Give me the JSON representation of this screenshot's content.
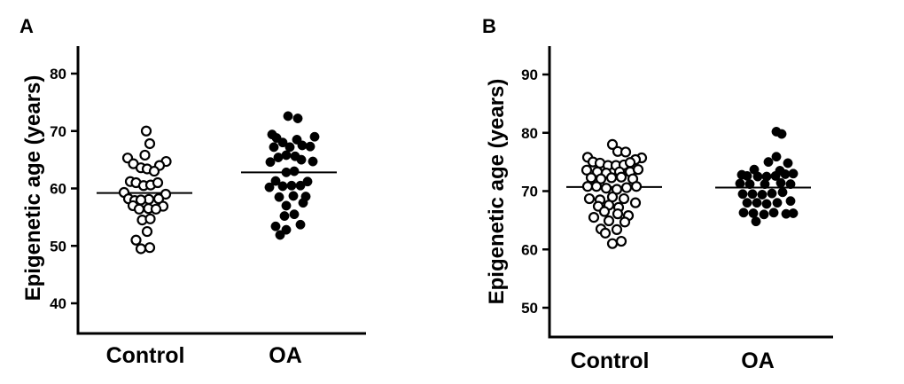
{
  "chart_data": [
    {
      "panel": "A",
      "type": "scatter",
      "ylabel": "Epigenetic age (years)",
      "categories": [
        "Control",
        "OA"
      ],
      "ylim": [
        35,
        85
      ],
      "yticks": [
        40,
        50,
        60,
        70,
        80
      ],
      "series": [
        {
          "name": "Control",
          "marker": "open-circle",
          "mean": 59.2,
          "points": [
            {
              "offset": 0.2,
              "y": 70.0
            },
            {
              "offset": 0.6,
              "y": 67.8
            },
            {
              "offset": 0.05,
              "y": 65.8
            },
            {
              "offset": -1.9,
              "y": 65.3
            },
            {
              "offset": 2.45,
              "y": 64.7
            },
            {
              "offset": -1.25,
              "y": 64.3
            },
            {
              "offset": 1.7,
              "y": 64.0
            },
            {
              "offset": -0.4,
              "y": 63.6
            },
            {
              "offset": 0.3,
              "y": 63.4
            },
            {
              "offset": 1.1,
              "y": 63.0
            },
            {
              "offset": -1.6,
              "y": 61.2
            },
            {
              "offset": -0.95,
              "y": 61.0
            },
            {
              "offset": -0.1,
              "y": 60.5
            },
            {
              "offset": 0.7,
              "y": 60.6
            },
            {
              "offset": 1.5,
              "y": 61.0
            },
            {
              "offset": -2.3,
              "y": 59.3
            },
            {
              "offset": 2.4,
              "y": 59.0
            },
            {
              "offset": -1.8,
              "y": 58.2
            },
            {
              "offset": -1.1,
              "y": 57.9
            },
            {
              "offset": 0.5,
              "y": 58.1
            },
            {
              "offset": 1.6,
              "y": 58.2
            },
            {
              "offset": -0.4,
              "y": 58.0
            },
            {
              "offset": -1.3,
              "y": 57.0
            },
            {
              "offset": 2.1,
              "y": 56.9
            },
            {
              "offset": -0.6,
              "y": 56.4
            },
            {
              "offset": 0.45,
              "y": 56.5
            },
            {
              "offset": 1.3,
              "y": 56.4
            },
            {
              "offset": -0.25,
              "y": 54.5
            },
            {
              "offset": 0.65,
              "y": 54.7
            },
            {
              "offset": 0.3,
              "y": 52.5
            },
            {
              "offset": -0.95,
              "y": 51.0
            },
            {
              "offset": -0.4,
              "y": 49.5
            },
            {
              "offset": 0.6,
              "y": 49.7
            }
          ]
        },
        {
          "name": "OA",
          "marker": "filled-circle",
          "mean": 62.8,
          "points": [
            {
              "offset": -0.1,
              "y": 72.6
            },
            {
              "offset": 1.0,
              "y": 72.2
            },
            {
              "offset": -1.9,
              "y": 69.4
            },
            {
              "offset": 2.9,
              "y": 69.0
            },
            {
              "offset": -1.4,
              "y": 68.8
            },
            {
              "offset": 0.9,
              "y": 68.5
            },
            {
              "offset": -0.7,
              "y": 68.0
            },
            {
              "offset": 0.1,
              "y": 67.2
            },
            {
              "offset": -1.7,
              "y": 67.2
            },
            {
              "offset": 1.5,
              "y": 67.5
            },
            {
              "offset": 2.4,
              "y": 67.3
            },
            {
              "offset": -0.3,
              "y": 65.8
            },
            {
              "offset": 0.7,
              "y": 65.6
            },
            {
              "offset": -1.2,
              "y": 65.4
            },
            {
              "offset": 1.4,
              "y": 65.0
            },
            {
              "offset": -2.1,
              "y": 64.6
            },
            {
              "offset": 2.7,
              "y": 64.7
            },
            {
              "offset": -0.3,
              "y": 62.8
            },
            {
              "offset": 0.6,
              "y": 63.0
            },
            {
              "offset": -1.5,
              "y": 61.3
            },
            {
              "offset": 2.1,
              "y": 61.2
            },
            {
              "offset": -2.2,
              "y": 60.2
            },
            {
              "offset": -0.7,
              "y": 60.4
            },
            {
              "offset": 0.3,
              "y": 60.5
            },
            {
              "offset": 1.3,
              "y": 60.5
            },
            {
              "offset": -1.1,
              "y": 58.5
            },
            {
              "offset": 0.5,
              "y": 58.7
            },
            {
              "offset": 1.9,
              "y": 58.6
            },
            {
              "offset": -0.3,
              "y": 57.0
            },
            {
              "offset": 1.6,
              "y": 57.5
            },
            {
              "offset": -0.5,
              "y": 55.2
            },
            {
              "offset": 0.6,
              "y": 55.5
            },
            {
              "offset": -1.5,
              "y": 53.4
            },
            {
              "offset": 1.3,
              "y": 53.7
            },
            {
              "offset": -0.3,
              "y": 52.8
            },
            {
              "offset": -1.0,
              "y": 51.9
            }
          ]
        }
      ]
    },
    {
      "panel": "B",
      "type": "scatter",
      "ylabel": "Epigenetic age (years)",
      "categories": [
        "Control",
        "OA"
      ],
      "ylim": [
        45,
        95
      ],
      "yticks": [
        50,
        60,
        70,
        80,
        90
      ],
      "series": [
        {
          "name": "Control",
          "marker": "open-circle",
          "mean": 70.7,
          "points": [
            {
              "offset": -0.2,
              "y": 78.0
            },
            {
              "offset": 0.4,
              "y": 76.8
            },
            {
              "offset": 1.3,
              "y": 76.7
            },
            {
              "offset": -3.0,
              "y": 75.8
            },
            {
              "offset": 3.1,
              "y": 75.7
            },
            {
              "offset": -2.4,
              "y": 75.0
            },
            {
              "offset": 2.4,
              "y": 75.4
            },
            {
              "offset": -1.6,
              "y": 74.8
            },
            {
              "offset": -0.7,
              "y": 74.4
            },
            {
              "offset": 0.2,
              "y": 74.4
            },
            {
              "offset": 1.1,
              "y": 74.5
            },
            {
              "offset": 1.8,
              "y": 74.9
            },
            {
              "offset": -3.1,
              "y": 73.6
            },
            {
              "offset": -1.9,
              "y": 73.3
            },
            {
              "offset": -0.9,
              "y": 73.1
            },
            {
              "offset": 0.6,
              "y": 73.3
            },
            {
              "offset": 1.8,
              "y": 73.3
            },
            {
              "offset": 2.7,
              "y": 73.7
            },
            {
              "offset": -2.6,
              "y": 72.3
            },
            {
              "offset": -1.5,
              "y": 72.1
            },
            {
              "offset": -0.3,
              "y": 72.3
            },
            {
              "offset": 0.8,
              "y": 72.4
            },
            {
              "offset": 2.1,
              "y": 72.1
            },
            {
              "offset": -3.0,
              "y": 70.8
            },
            {
              "offset": -2.0,
              "y": 70.8
            },
            {
              "offset": -0.9,
              "y": 70.5
            },
            {
              "offset": 0.3,
              "y": 70.3
            },
            {
              "offset": 1.4,
              "y": 70.6
            },
            {
              "offset": 2.5,
              "y": 70.8
            },
            {
              "offset": -2.8,
              "y": 68.7
            },
            {
              "offset": -1.6,
              "y": 68.5
            },
            {
              "offset": -0.2,
              "y": 69.0
            },
            {
              "offset": 1.1,
              "y": 68.7
            },
            {
              "offset": 2.4,
              "y": 68.0
            },
            {
              "offset": -1.8,
              "y": 67.4
            },
            {
              "offset": -0.6,
              "y": 67.6
            },
            {
              "offset": 0.5,
              "y": 67.2
            },
            {
              "offset": -1.1,
              "y": 66.5
            },
            {
              "offset": 0.4,
              "y": 66.1
            },
            {
              "offset": 1.6,
              "y": 65.8
            },
            {
              "offset": -2.3,
              "y": 65.5
            },
            {
              "offset": 1.2,
              "y": 64.7
            },
            {
              "offset": -0.6,
              "y": 64.9
            },
            {
              "offset": -1.5,
              "y": 63.5
            },
            {
              "offset": 0.3,
              "y": 63.4
            },
            {
              "offset": -1.0,
              "y": 62.8
            },
            {
              "offset": 0.8,
              "y": 61.4
            },
            {
              "offset": -0.2,
              "y": 61.0
            }
          ]
        },
        {
          "name": "OA",
          "marker": "filled-circle",
          "mean": 70.6,
          "points": [
            {
              "offset": 1.5,
              "y": 80.2
            },
            {
              "offset": 2.1,
              "y": 79.8
            },
            {
              "offset": 1.5,
              "y": 75.9
            },
            {
              "offset": 0.6,
              "y": 75.0
            },
            {
              "offset": 2.8,
              "y": 74.8
            },
            {
              "offset": -1.0,
              "y": 73.7
            },
            {
              "offset": 1.9,
              "y": 73.5
            },
            {
              "offset": -2.4,
              "y": 72.8
            },
            {
              "offset": -1.8,
              "y": 72.6
            },
            {
              "offset": -0.6,
              "y": 72.5
            },
            {
              "offset": 0.4,
              "y": 72.5
            },
            {
              "offset": 1.4,
              "y": 72.6
            },
            {
              "offset": 2.5,
              "y": 72.9
            },
            {
              "offset": 3.4,
              "y": 73.0
            },
            {
              "offset": -2.6,
              "y": 71.3
            },
            {
              "offset": -1.5,
              "y": 71.2
            },
            {
              "offset": 0.2,
              "y": 71.2
            },
            {
              "offset": 2.0,
              "y": 71.4
            },
            {
              "offset": 3.1,
              "y": 71.2
            },
            {
              "offset": -2.3,
              "y": 69.5
            },
            {
              "offset": -1.2,
              "y": 69.5
            },
            {
              "offset": -0.1,
              "y": 69.4
            },
            {
              "offset": 1.0,
              "y": 69.6
            },
            {
              "offset": 2.2,
              "y": 69.8
            },
            {
              "offset": -1.8,
              "y": 68.0
            },
            {
              "offset": -0.7,
              "y": 68.0
            },
            {
              "offset": 0.4,
              "y": 67.8
            },
            {
              "offset": 1.6,
              "y": 68.0
            },
            {
              "offset": 3.1,
              "y": 68.3
            },
            {
              "offset": -2.2,
              "y": 66.3
            },
            {
              "offset": -1.1,
              "y": 66.2
            },
            {
              "offset": 0.1,
              "y": 66.0
            },
            {
              "offset": 1.2,
              "y": 66.3
            },
            {
              "offset": 2.6,
              "y": 66.1
            },
            {
              "offset": 3.4,
              "y": 66.2
            },
            {
              "offset": -0.8,
              "y": 64.8
            }
          ]
        }
      ]
    }
  ]
}
